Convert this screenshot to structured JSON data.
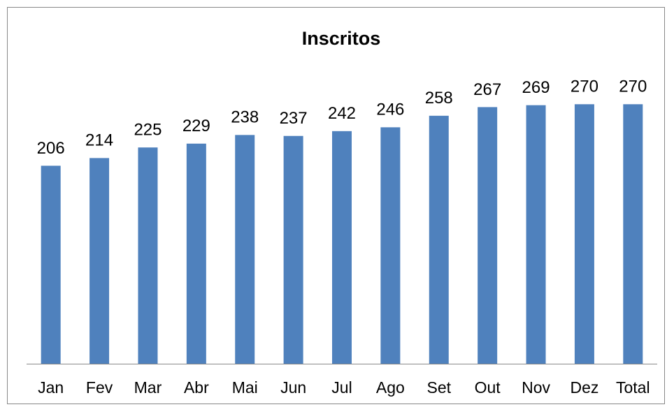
{
  "chart_data": {
    "type": "bar",
    "title": "Inscritos",
    "categories": [
      "Jan",
      "Fev",
      "Mar",
      "Abr",
      "Mai",
      "Jun",
      "Jul",
      "Ago",
      "Set",
      "Out",
      "Nov",
      "Dez",
      "Total"
    ],
    "values": [
      206,
      214,
      225,
      229,
      238,
      237,
      242,
      246,
      258,
      267,
      269,
      270,
      270
    ],
    "color": "#4f81bd",
    "ylim": [
      0,
      300
    ]
  }
}
